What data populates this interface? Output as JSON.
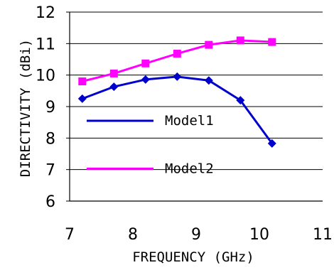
{
  "chart_data": {
    "type": "line",
    "xlabel": "FREQUENCY (GHz)",
    "ylabel": "DIRECTIVITY (dBi)",
    "xlim": [
      7,
      11
    ],
    "ylim": [
      6,
      12
    ],
    "xticks": [
      "7",
      "8",
      "9",
      "10",
      "11"
    ],
    "yticks": [
      "6",
      "7",
      "8",
      "9",
      "10",
      "11",
      "12"
    ],
    "grid": "horizontal",
    "legend_position": "inside-left",
    "series": [
      {
        "name": "Model1",
        "color": "#0000cc",
        "marker": "diamond",
        "x": [
          7.2,
          7.7,
          8.2,
          8.7,
          9.2,
          9.7,
          10.2
        ],
        "values": [
          9.25,
          9.63,
          9.86,
          9.95,
          9.83,
          9.2,
          7.83
        ]
      },
      {
        "name": "Model2",
        "color": "#ff00ff",
        "marker": "square",
        "x": [
          7.2,
          7.7,
          8.2,
          8.7,
          9.2,
          9.7,
          10.2
        ],
        "values": [
          9.8,
          10.05,
          10.37,
          10.68,
          10.96,
          11.1,
          11.05
        ]
      }
    ]
  }
}
